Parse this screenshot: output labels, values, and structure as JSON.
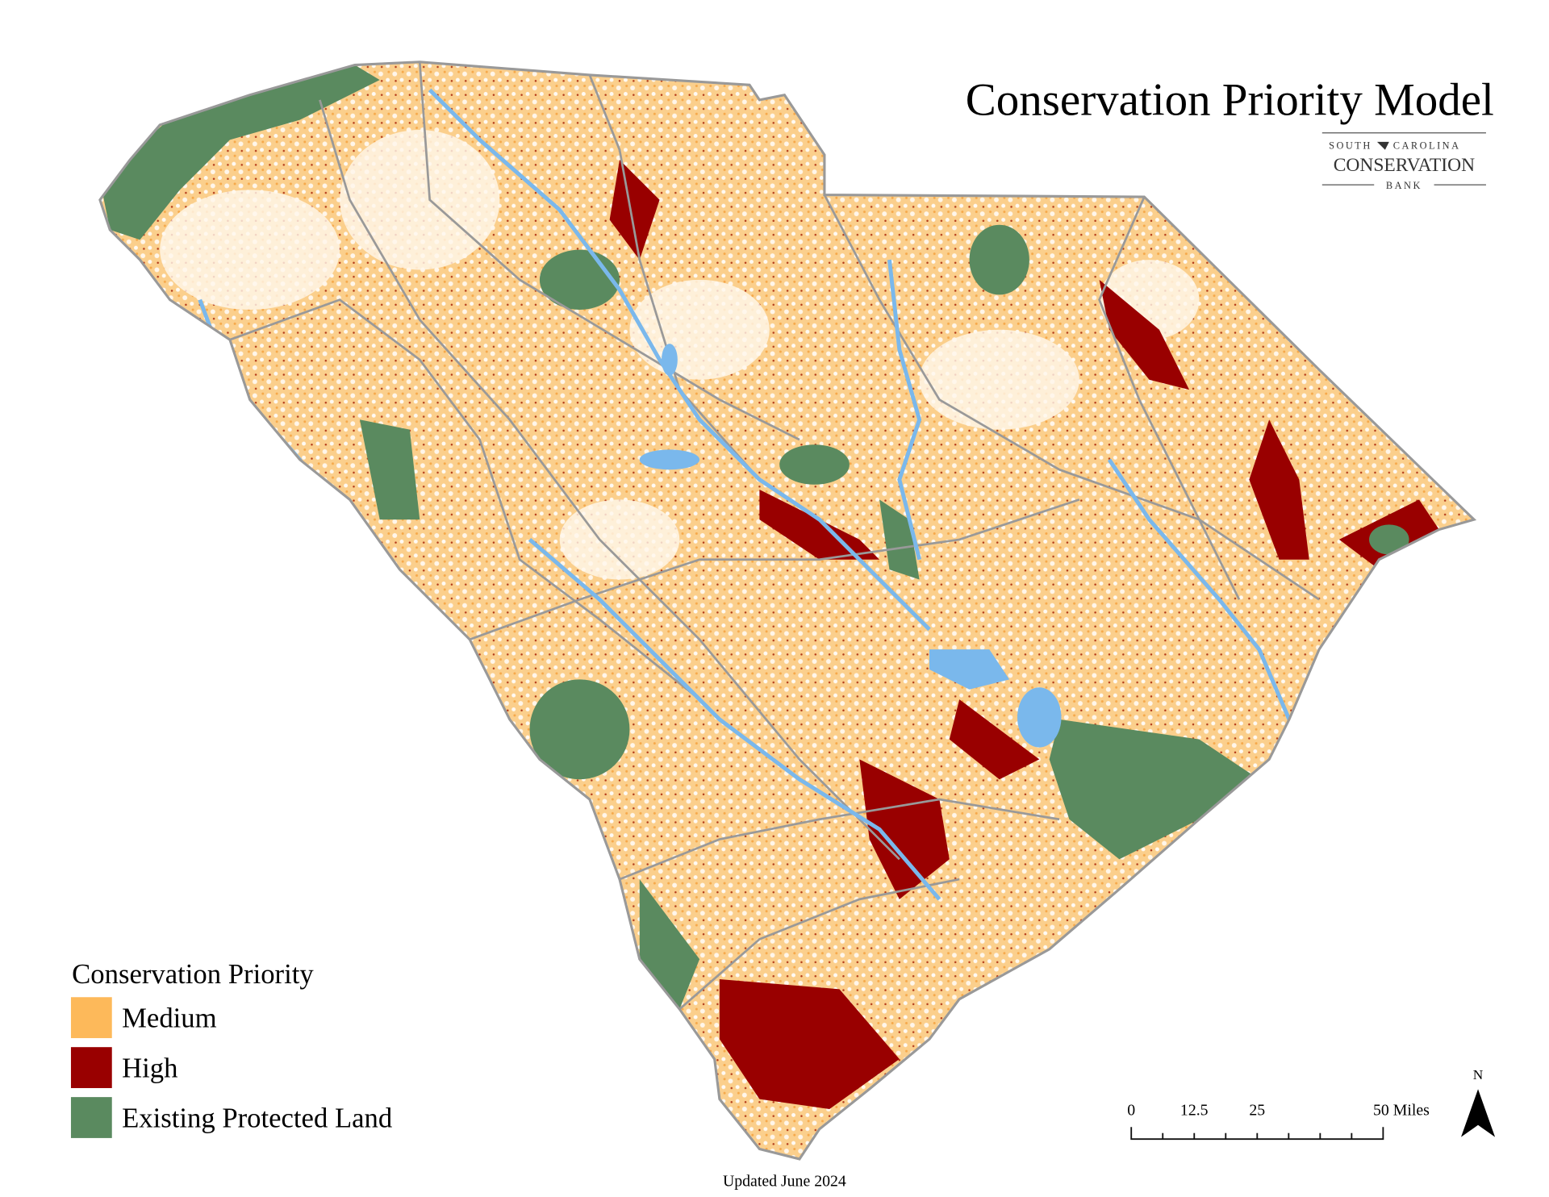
{
  "title": "Conservation Priority Model",
  "logo": {
    "top_left": "SOUTH",
    "top_right": "CAROLINA",
    "main": "CONSERVATION",
    "bottom": "BANK"
  },
  "legend": {
    "title": "Conservation Priority",
    "items": [
      {
        "label": "Medium",
        "color": "#fdb95a"
      },
      {
        "label": "High",
        "color": "#990000"
      },
      {
        "label": "Existing Protected Land",
        "color": "#5a8a5f"
      }
    ]
  },
  "scale_bar": {
    "labels": [
      "0",
      "12.5",
      "25",
      "50 Miles"
    ]
  },
  "north": "N",
  "footer": "Updated June 2024"
}
